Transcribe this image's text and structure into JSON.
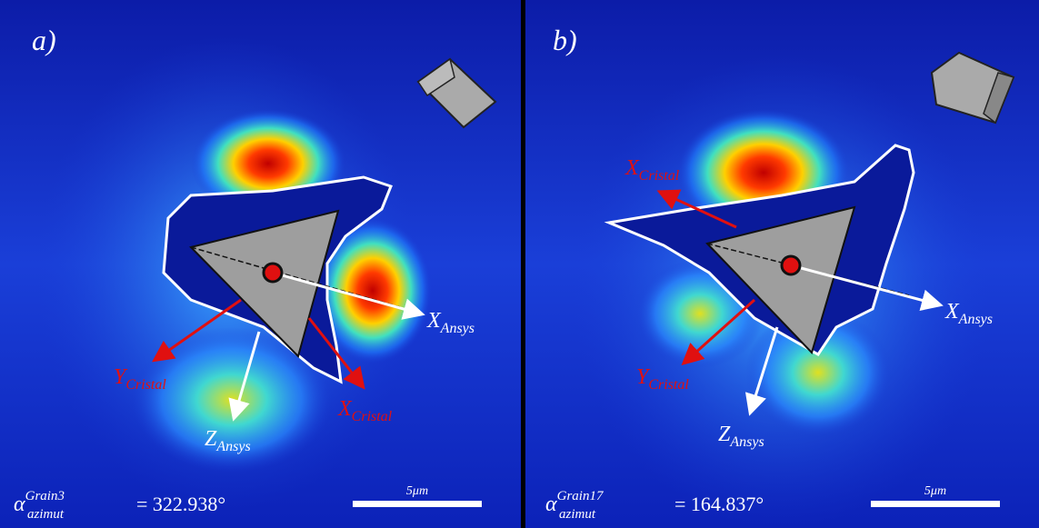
{
  "panels": [
    {
      "label": "a)",
      "axes": [
        {
          "main": "X",
          "sub": "Ansys"
        },
        {
          "main": "Z",
          "sub": "Ansys"
        },
        {
          "main": "Y",
          "sub": "Cristal"
        },
        {
          "main": "X",
          "sub": "Cristal"
        }
      ],
      "angle": {
        "symbol": "α",
        "sup": "Grain3",
        "sub": "azimut",
        "value": "= 322.938°"
      },
      "scale_bar": "5μm"
    },
    {
      "label": "b)",
      "axes": [
        {
          "main": "X",
          "sub": "Ansys"
        },
        {
          "main": "Z",
          "sub": "Ansys"
        },
        {
          "main": "Y",
          "sub": "Cristal"
        },
        {
          "main": "X",
          "sub": "Cristal"
        }
      ],
      "angle": {
        "symbol": "α",
        "sup": "Grain17",
        "sub": "azimut",
        "value": "= 164.837°"
      },
      "scale_bar": "5μm"
    }
  ]
}
